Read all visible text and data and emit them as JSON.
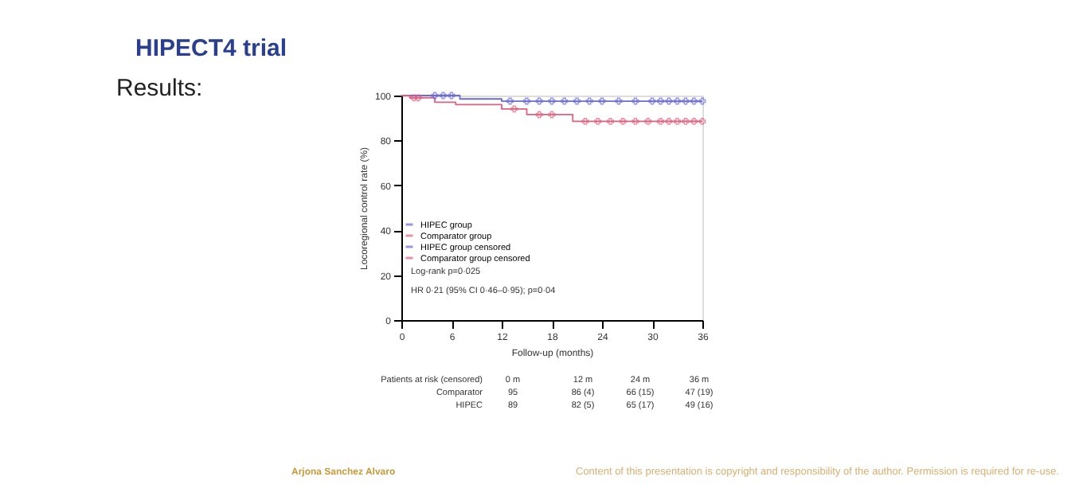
{
  "chart_data": {
    "type": "step",
    "title": "HIPECT4 trial",
    "subtitle": "Results:",
    "xlabel": "Follow-up (months)",
    "ylabel": "Locoregional control rate (%)",
    "xlim": [
      0,
      36
    ],
    "xticks": [
      0,
      6,
      12,
      18,
      24,
      30,
      36
    ],
    "ylim": [
      0,
      100
    ],
    "yticks": [
      0,
      20,
      40,
      60,
      80,
      100
    ],
    "grid": false,
    "legend": "bottom left",
    "series": [
      {
        "name": "HIPEC group",
        "color": "#6b6bd6",
        "x": [
          0,
          7,
          12,
          36
        ],
        "values": [
          100,
          98.5,
          97.5,
          97.5
        ]
      },
      {
        "name": "Comparator group",
        "color": "#e0607e",
        "x": [
          0,
          1,
          4,
          6.5,
          12,
          15,
          20.5,
          36
        ],
        "values": [
          100,
          99,
          97,
          96,
          94,
          91.5,
          88.5,
          88.5
        ]
      },
      {
        "name": "HIPEC group censored",
        "type": "scatter",
        "marker": "cross",
        "color": "#6b6bd6",
        "x": [
          4,
          5,
          6,
          13,
          15,
          16.5,
          18,
          19.5,
          21,
          22.5,
          24,
          26,
          28,
          30,
          31,
          32,
          33,
          34,
          35,
          36
        ],
        "values": [
          100,
          100,
          100,
          97.5,
          97.5,
          97.5,
          97.5,
          97.5,
          97.5,
          97.5,
          97.5,
          97.5,
          97.5,
          97.5,
          97.5,
          97.5,
          97.5,
          97.5,
          97.5,
          97.5
        ]
      },
      {
        "name": "Comparator group censored",
        "type": "scatter",
        "marker": "cross",
        "color": "#e0607e",
        "x": [
          1.5,
          2,
          13.5,
          16.5,
          18,
          22,
          23.5,
          25,
          26.5,
          28,
          29.5,
          31,
          32,
          33,
          34,
          35,
          36
        ],
        "values": [
          99,
          99,
          94,
          91.5,
          91.5,
          88.5,
          88.5,
          88.5,
          88.5,
          88.5,
          88.5,
          88.5,
          88.5,
          88.5,
          88.5,
          88.5,
          88.5
        ]
      }
    ],
    "annotations": [
      "Log-rank p=0·025",
      "HR 0·21 (95% CI 0·46–0·95); p=0·04",
      "Patients at risk (censored)",
      "0 m",
      "12 m",
      "24 m",
      "36 m",
      "Comparator",
      "95",
      "86 (4)",
      "66 (15)",
      "47 (19)",
      "HIPEC",
      "89",
      "82 (5)",
      "65 (17)",
      "49 (16)",
      "Arjona Sanchez Alvaro",
      "Content of this presentation is copyright and responsibility of the author. Permission is required for re-use."
    ]
  }
}
